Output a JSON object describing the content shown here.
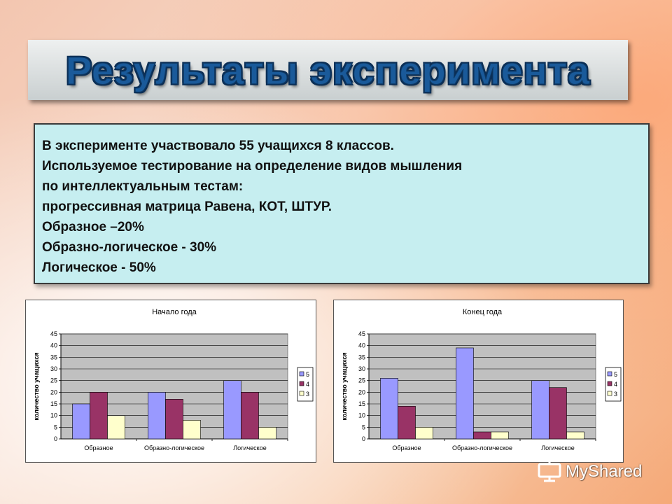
{
  "slide": {
    "title": "Результаты эксперимента",
    "info_lines": [
      "В эксперименте участвовало 55 учащихся 8 классов.",
      "Используемое тестирование на определение  видов мышления",
      "по интеллектуальным  тестам:",
      "прогрессивная матрица Равена, КОТ, ШТУР.",
      "Образное –20%",
      "Образно-логическое - 30%",
      "Логическое - 50%"
    ],
    "watermark": "MyShared"
  },
  "chart_data": [
    {
      "type": "bar",
      "title": "Начало года",
      "ylabel": "количество учащихся",
      "xlabel": "",
      "categories": [
        "Образное",
        "Образно-логическое",
        "Логическое"
      ],
      "series": [
        {
          "name": "5",
          "values": [
            15,
            20,
            25
          ],
          "color": "#9999ff"
        },
        {
          "name": "4",
          "values": [
            20,
            17,
            20
          ],
          "color": "#993366"
        },
        {
          "name": "3",
          "values": [
            10,
            8,
            5
          ],
          "color": "#ffffcc"
        }
      ],
      "ylim": [
        0,
        45
      ],
      "yticks": [
        0,
        5,
        10,
        15,
        20,
        25,
        30,
        35,
        40,
        45
      ],
      "grid": true,
      "legend": "right",
      "plot_bg": "#c0c0c0"
    },
    {
      "type": "bar",
      "title": "Конец года",
      "ylabel": "количество учащихся",
      "xlabel": "",
      "categories": [
        "Образное",
        "Образно-логическое",
        "Логическое"
      ],
      "series": [
        {
          "name": "5",
          "values": [
            26,
            39,
            25
          ],
          "color": "#9999ff"
        },
        {
          "name": "4",
          "values": [
            14,
            3,
            22
          ],
          "color": "#993366"
        },
        {
          "name": "3",
          "values": [
            5,
            3,
            3
          ],
          "color": "#ffffcc"
        }
      ],
      "ylim": [
        0,
        45
      ],
      "yticks": [
        0,
        5,
        10,
        15,
        20,
        25,
        30,
        35,
        40,
        45
      ],
      "grid": true,
      "legend": "right",
      "plot_bg": "#c0c0c0"
    }
  ]
}
